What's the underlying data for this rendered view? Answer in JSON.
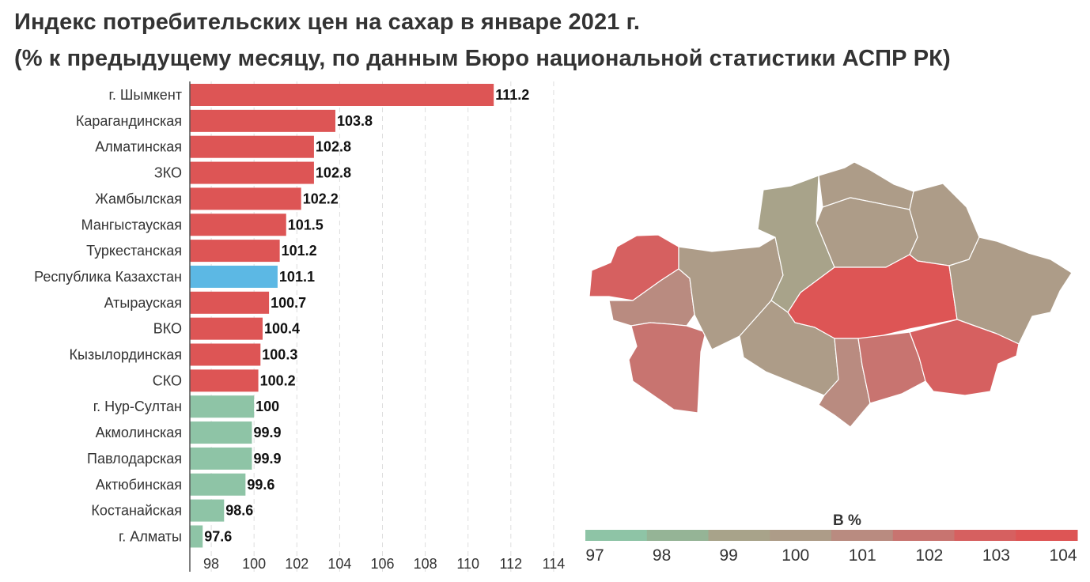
{
  "title": "Индекс потребительских цен на сахар в январе 2021 г.",
  "subtitle": "(% к предыдущему месяцу, по данным Бюро национальной статистики АСПР РК)",
  "colors": {
    "above_100": "#dd5555",
    "at_or_below_100": "#8ec4a6",
    "national": "#5cb8e4",
    "grid": "#dddddd",
    "axis": "#555555",
    "map_outline": "#ffffff"
  },
  "chart_data": {
    "type": "bar",
    "orientation": "horizontal",
    "categories": [
      "г. Шымкент",
      "Карагандинская",
      "Алматинская",
      "ЗКО",
      "Жамбылская",
      "Мангыстауская",
      "Туркестанская",
      "Республика Казахстан",
      "Атырауская",
      "ВКО",
      "Кызылординская",
      "СКО",
      "г. Нур-Султан",
      "Акмолинская",
      "Павлодарская",
      "Актюбинская",
      "Костанайская",
      "г. Алматы"
    ],
    "values": [
      111.2,
      103.8,
      102.8,
      102.8,
      102.2,
      101.5,
      101.2,
      101.1,
      100.7,
      100.4,
      100.3,
      100.2,
      100,
      99.9,
      99.9,
      99.6,
      98.6,
      97.6
    ],
    "value_labels": [
      "111.2",
      "103.8",
      "102.8",
      "102.8",
      "102.2",
      "101.5",
      "101.2",
      "101.1",
      "100.7",
      "100.4",
      "100.3",
      "100.2",
      "100",
      "99.9",
      "99.9",
      "99.6",
      "98.6",
      "97.6"
    ],
    "xlim": [
      97,
      115
    ],
    "xticks": [
      "98",
      "100",
      "102",
      "104",
      "106",
      "108",
      "110",
      "112",
      "114"
    ],
    "grid": true,
    "legend": "none"
  },
  "map": {
    "type": "choropleth",
    "legend_title": "В %",
    "legend_ticks": [
      "97",
      "98",
      "99",
      "100",
      "101",
      "102",
      "103",
      "104"
    ],
    "scale_colors": [
      "#8ec4a6",
      "#95b496",
      "#a8a38a",
      "#ad9c88",
      "#b98b80",
      "#c87470",
      "#d66060",
      "#dd5555"
    ],
    "regions": [
      {
        "name": "ЗКО",
        "value": 102.8
      },
      {
        "name": "Атырауская",
        "value": 100.7
      },
      {
        "name": "Мангыстауская",
        "value": 101.5
      },
      {
        "name": "Актюбинская",
        "value": 99.6
      },
      {
        "name": "Костанайская",
        "value": 98.6
      },
      {
        "name": "СКО",
        "value": 100.2
      },
      {
        "name": "Акмолинская",
        "value": 99.9
      },
      {
        "name": "Павлодарская",
        "value": 99.9
      },
      {
        "name": "Карагандинская",
        "value": 103.8
      },
      {
        "name": "ВКО",
        "value": 100.4
      },
      {
        "name": "Кызылординская",
        "value": 100.3
      },
      {
        "name": "Туркестанская",
        "value": 101.2
      },
      {
        "name": "Жамбылская",
        "value": 102.2
      },
      {
        "name": "Алматинская",
        "value": 102.8
      }
    ]
  }
}
